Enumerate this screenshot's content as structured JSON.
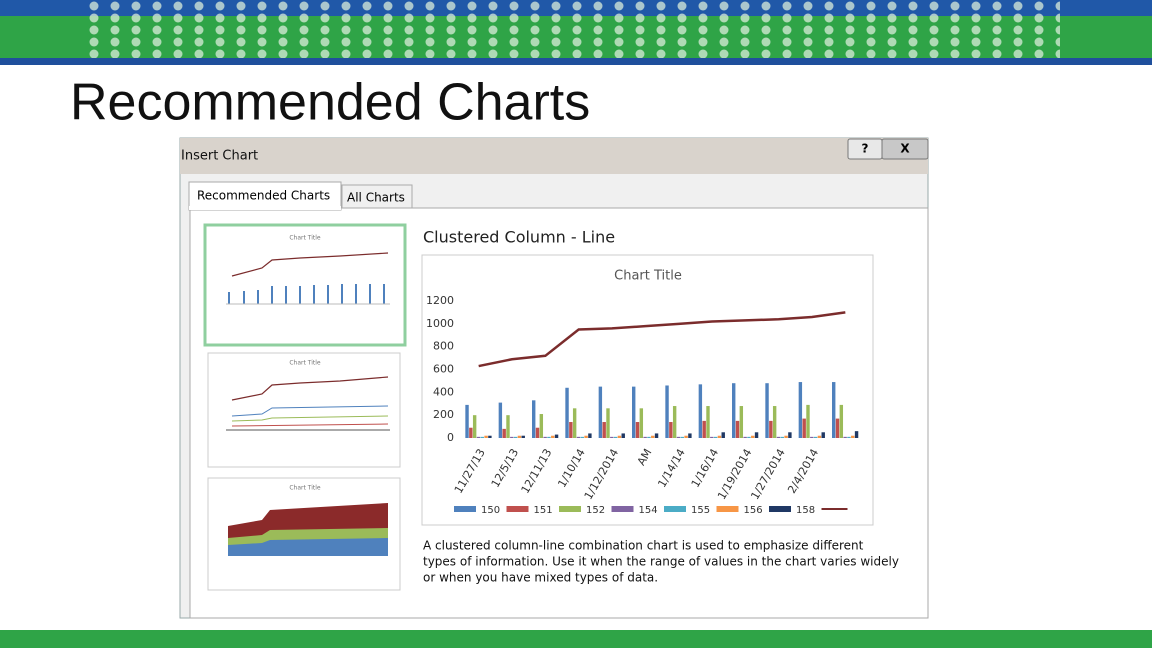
{
  "slide_title": "Recommended Charts",
  "dialog": {
    "title": "Insert Chart",
    "help_button": "?",
    "close_button": "X",
    "tabs": [
      "Recommended Charts",
      "All Charts"
    ],
    "preview_heading": "Clustered Column - Line",
    "description": [
      "A clustered column-line combination chart is used to emphasize different",
      "types of information. Use it when the range of values in the chart varies widely",
      "or when you have mixed types of data."
    ]
  },
  "chart_data": {
    "type": "bar",
    "title": "Chart Title",
    "categories": [
      "11/27/13",
      "12/5/13",
      "12/11/13",
      "1/10/14",
      "1/12/2014",
      "AM",
      "1/14/14",
      "1/16/14",
      "1/19/2014",
      "1/27/2014",
      "2/4/2014",
      null
    ],
    "series": [
      {
        "name": "150",
        "color": "#4f81bd",
        "values": [
          290,
          310,
          330,
          440,
          450,
          450,
          460,
          470,
          480,
          480,
          490,
          490
        ]
      },
      {
        "name": "151",
        "color": "#c0504d",
        "values": [
          90,
          80,
          90,
          140,
          140,
          140,
          140,
          150,
          150,
          150,
          170,
          170
        ]
      },
      {
        "name": "152",
        "color": "#9bbb59",
        "values": [
          200,
          200,
          210,
          260,
          260,
          260,
          280,
          280,
          280,
          280,
          290,
          290
        ]
      },
      {
        "name": "154",
        "color": "#8064a2",
        "values": [
          10,
          10,
          10,
          10,
          10,
          10,
          10,
          10,
          10,
          10,
          10,
          10
        ]
      },
      {
        "name": "155",
        "color": "#4bacc6",
        "values": [
          10,
          10,
          10,
          10,
          10,
          10,
          10,
          10,
          10,
          10,
          10,
          10
        ]
      },
      {
        "name": "156",
        "color": "#f79646",
        "values": [
          20,
          20,
          20,
          20,
          20,
          20,
          20,
          20,
          20,
          20,
          20,
          20
        ]
      },
      {
        "name": "158",
        "color": "#1f3864",
        "values": [
          20,
          20,
          30,
          40,
          40,
          40,
          40,
          50,
          50,
          50,
          50,
          60
        ]
      },
      {
        "type": "line",
        "color": "#7b2c2c",
        "values": [
          630,
          690,
          720,
          950,
          960,
          980,
          1000,
          1020,
          1030,
          1040,
          1060,
          1100
        ]
      }
    ],
    "ylim": [
      0,
      1200
    ],
    "yticks": [
      0,
      200,
      400,
      600,
      800,
      1000,
      1200
    ],
    "grid": false,
    "legend": "bottom"
  }
}
